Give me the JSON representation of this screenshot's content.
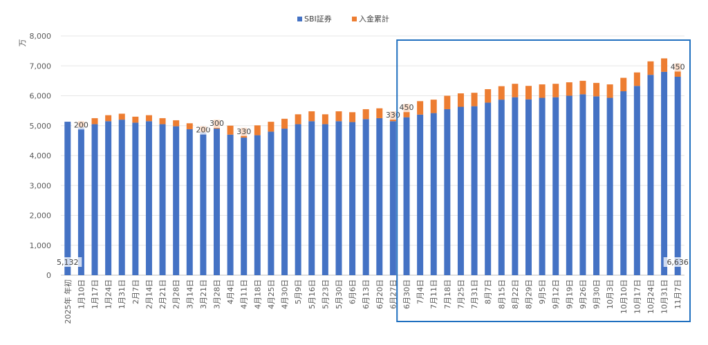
{
  "chart_data": {
    "type": "bar",
    "stacked": true,
    "ylabel": "万",
    "ylim": [
      0,
      8000
    ],
    "yticks": [
      "0",
      "1,000",
      "2,000",
      "3,000",
      "4,000",
      "5,000",
      "6,000",
      "7,000",
      "8,000"
    ],
    "grid": true,
    "legend_position": "top",
    "categories": [
      "2025年 年初",
      "1月10日",
      "1月17日",
      "1月24日",
      "1月31日",
      "2月7日",
      "2月14日",
      "2月21日",
      "2月28日",
      "3月14日",
      "3月21日",
      "3月28日",
      "4月4日",
      "4月11日",
      "4月18日",
      "4月25日",
      "4月30日",
      "5月9日",
      "5月16日",
      "5月23日",
      "5月30日",
      "6月6日",
      "6月13日",
      "6月20日",
      "6月27日",
      "6月30日",
      "7月4日",
      "7月11日",
      "7月18日",
      "7月25日",
      "7月31日",
      "8月7日",
      "8月15日",
      "8月22日",
      "8月29日",
      "9月5日",
      "9月12日",
      "9月19日",
      "9月26日",
      "9月30日",
      "10月3日",
      "10月10日",
      "10月17日",
      "10月24日",
      "10月31日",
      "11月7日"
    ],
    "series": [
      {
        "name": "SBI証券",
        "color": "#4472C4",
        "values": [
          5132,
          4950,
          5050,
          5150,
          5200,
          5100,
          5150,
          5050,
          4980,
          4880,
          4780,
          4900,
          4700,
          4600,
          4680,
          4800,
          4900,
          5050,
          5150,
          5050,
          5150,
          5120,
          5220,
          5250,
          5150,
          5280,
          5370,
          5420,
          5550,
          5630,
          5650,
          5770,
          5870,
          5950,
          5880,
          5930,
          5950,
          6000,
          6050,
          5980,
          5930,
          6150,
          6330,
          6700,
          6800,
          6636
        ]
      },
      {
        "name": "入金累計",
        "color": "#ED7D31",
        "values": [
          0,
          200,
          200,
          200,
          200,
          200,
          200,
          200,
          200,
          200,
          200,
          300,
          300,
          330,
          330,
          330,
          330,
          330,
          330,
          330,
          330,
          330,
          330,
          330,
          330,
          450,
          450,
          450,
          450,
          450,
          450,
          450,
          450,
          450,
          450,
          450,
          450,
          450,
          450,
          450,
          450,
          450,
          450,
          450,
          450,
          450
        ]
      }
    ],
    "data_labels": [
      {
        "index": 0,
        "series": 0,
        "text": "5,132"
      },
      {
        "index": 1,
        "series": 1,
        "text": "200"
      },
      {
        "index": 10,
        "series": 1,
        "text": "200"
      },
      {
        "index": 11,
        "series": 1,
        "text": "300"
      },
      {
        "index": 13,
        "series": 1,
        "text": "330"
      },
      {
        "index": 24,
        "series": 1,
        "text": "330"
      },
      {
        "index": 25,
        "series": 1,
        "text": "450"
      },
      {
        "index": 45,
        "series": 1,
        "text": "450"
      },
      {
        "index": 45,
        "series": 0,
        "text": "6,636"
      }
    ],
    "highlight": {
      "from": "6月30日",
      "to": "11月7日",
      "color": "#1F6FBF"
    }
  }
}
